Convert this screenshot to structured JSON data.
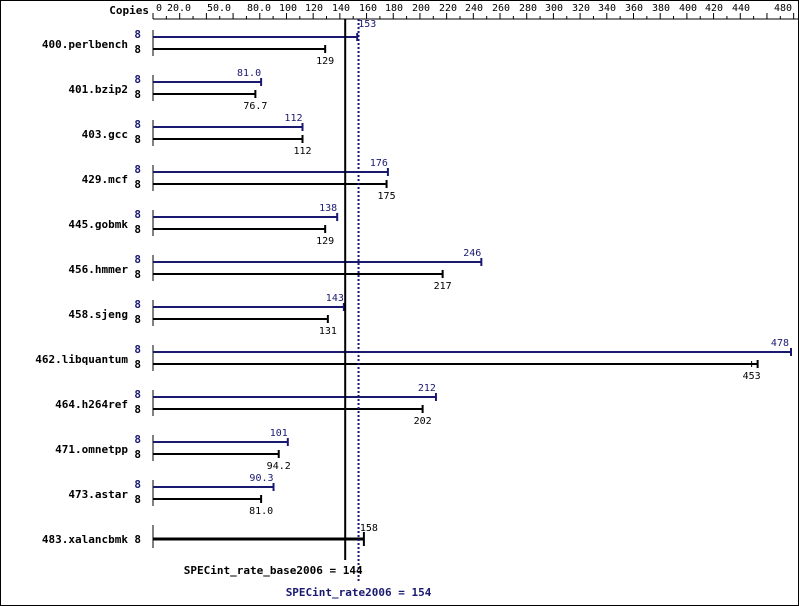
{
  "chart_data": {
    "type": "bar",
    "copies_label": "Copies",
    "x_ticks": [
      "0",
      "20.0",
      "50.0",
      "80.0",
      "100",
      "120",
      "140",
      "160",
      "180",
      "200",
      "220",
      "240",
      "260",
      "280",
      "300",
      "320",
      "340",
      "360",
      "380",
      "400",
      "420",
      "440",
      "480"
    ],
    "benchmarks": [
      {
        "name": "400.perlbench",
        "peak_copies": "8",
        "base_copies": "8",
        "peak": 153,
        "base": 129,
        "peak_label": "153",
        "base_label": "129"
      },
      {
        "name": "401.bzip2",
        "peak_copies": "8",
        "base_copies": "8",
        "peak": 81.0,
        "base": 76.7,
        "peak_label": "81.0",
        "base_label": "76.7"
      },
      {
        "name": "403.gcc",
        "peak_copies": "8",
        "base_copies": "8",
        "peak": 112,
        "base": 112,
        "peak_label": "112",
        "base_label": "112"
      },
      {
        "name": "429.mcf",
        "peak_copies": "8",
        "base_copies": "8",
        "peak": 176,
        "base": 175,
        "peak_label": "176",
        "base_label": "175"
      },
      {
        "name": "445.gobmk",
        "peak_copies": "8",
        "base_copies": "8",
        "peak": 138,
        "base": 129,
        "peak_label": "138",
        "base_label": "129"
      },
      {
        "name": "456.hmmer",
        "peak_copies": "8",
        "base_copies": "8",
        "peak": 246,
        "base": 217,
        "peak_label": "246",
        "base_label": "217"
      },
      {
        "name": "458.sjeng",
        "peak_copies": "8",
        "base_copies": "8",
        "peak": 143,
        "base": 131,
        "peak_label": "143",
        "base_label": "131"
      },
      {
        "name": "462.libquantum",
        "peak_copies": "8",
        "base_copies": "8",
        "peak": 478,
        "base": 453,
        "peak_label": "478",
        "base_label": "453"
      },
      {
        "name": "464.h264ref",
        "peak_copies": "8",
        "base_copies": "8",
        "peak": 212,
        "base": 202,
        "peak_label": "212",
        "base_label": "202"
      },
      {
        "name": "471.omnetpp",
        "peak_copies": "8",
        "base_copies": "8",
        "peak": 101,
        "base": 94.2,
        "peak_label": "101",
        "base_label": "94.2"
      },
      {
        "name": "473.astar",
        "peak_copies": "8",
        "base_copies": "8",
        "peak": 90.3,
        "base": 81.0,
        "peak_label": "90.3",
        "base_label": "81.0"
      },
      {
        "name": "483.xalancbmk",
        "copies": "8",
        "combined": 158,
        "combined_label": "158"
      }
    ],
    "base_summary": {
      "label": "SPECint_rate_base2006 = 144",
      "value": 144
    },
    "peak_summary": {
      "label": "SPECint_rate2006 = 154",
      "value": 154
    },
    "colors": {
      "peak": "#191970",
      "base": "#000000"
    },
    "xlim": [
      0,
      480
    ]
  }
}
